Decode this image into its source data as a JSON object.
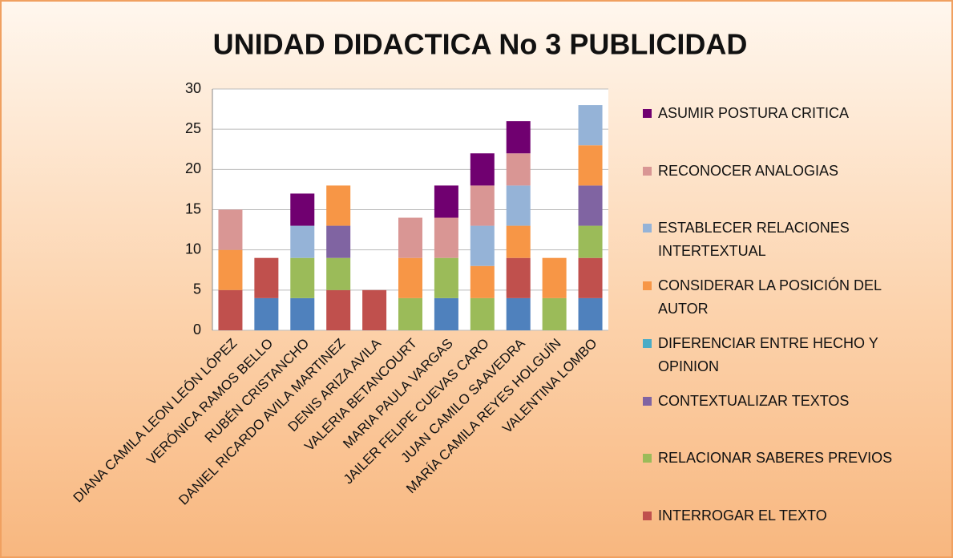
{
  "chart_data": {
    "type": "stacked_bar",
    "title": "UNIDAD DIDACTICA No 3 PUBLICIDAD",
    "categories": [
      "DIANA CAMILA LEON LEÓN LÓPEZ",
      "VERÓNICA RAMOS BELLO",
      "RUBÉN CRISTANCHO",
      "DANIEL RICARDO AVILA MARTINEZ",
      "DENIS ARIZA AVILA",
      "VALERIA BETANCOURT",
      "MARIA PAULA VARGAS",
      "JAILER FELIPE CUEVAS CARO",
      "JUAN CAMILO SAAVEDRA",
      "MARÍA CAMILA REYES HOLGUÍN",
      "VALENTINA LOMBO"
    ],
    "series": [
      {
        "color": "#4f81bd",
        "values": [
          0,
          4,
          4,
          0,
          0,
          0,
          4,
          0,
          4,
          0,
          4
        ]
      },
      {
        "name": "INTERROGAR EL TEXTO",
        "color": "#c0504d",
        "values": [
          5,
          5,
          0,
          5,
          5,
          0,
          0,
          0,
          5,
          0,
          5
        ]
      },
      {
        "name": "RELACIONAR SABERES PREVIOS",
        "color": "#9bbb59",
        "values": [
          0,
          0,
          5,
          4,
          0,
          4,
          5,
          4,
          0,
          4,
          4
        ]
      },
      {
        "name": "CONTEXTUALIZAR TEXTOS",
        "color": "#8064a2",
        "values": [
          0,
          0,
          0,
          4,
          0,
          0,
          0,
          0,
          0,
          0,
          5
        ]
      },
      {
        "name": "DIFERENCIAR ENTRE HECHO Y OPINION",
        "color": "#4bacc6",
        "values": [
          0,
          0,
          0,
          0,
          0,
          0,
          0,
          0,
          0,
          0,
          0
        ]
      },
      {
        "name": "CONSIDERAR LA POSICIÓN DEL AUTOR",
        "color": "#f79646",
        "values": [
          5,
          0,
          0,
          5,
          0,
          5,
          0,
          4,
          4,
          5,
          5
        ]
      },
      {
        "name": "ESTABLECER RELACIONES INTERTEXTUAL",
        "color": "#95b3d7",
        "values": [
          0,
          0,
          4,
          0,
          0,
          0,
          0,
          5,
          5,
          0,
          5
        ]
      },
      {
        "name": "RECONOCER ANALOGIAS",
        "color": "#d99694",
        "values": [
          5,
          0,
          0,
          0,
          0,
          5,
          5,
          5,
          4,
          0,
          0
        ]
      },
      {
        "name": "ASUMIR POSTURA CRITICA",
        "color": "#700070",
        "values": [
          0,
          0,
          4,
          0,
          0,
          0,
          4,
          4,
          4,
          0,
          0
        ]
      }
    ],
    "ylim": [
      0,
      30
    ],
    "yticks": [
      0,
      5,
      10,
      15,
      20,
      25,
      30
    ],
    "grid": true,
    "legend": "right"
  }
}
